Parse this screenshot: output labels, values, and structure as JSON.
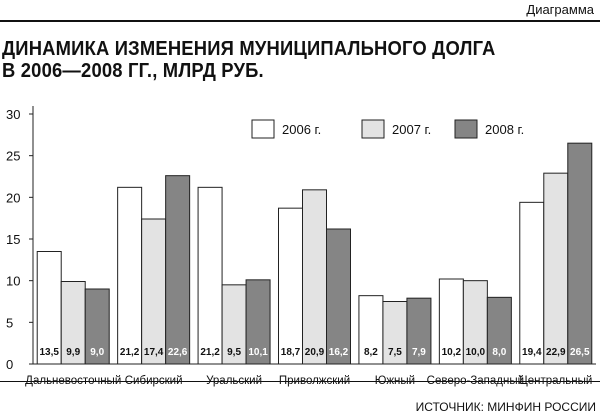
{
  "header": {
    "section_label": "Диаграмма"
  },
  "title_lines": [
    "ДИНАМИКА ИЗМЕНЕНИЯ МУНИЦИПАЛЬНОГО ДОЛГА",
    "В 2006—2008 ГГ., МЛРД РУБ."
  ],
  "source": "ИСТОЧНИК: МИНФИН РОССИИ",
  "colors": {
    "s2006": "#ffffff",
    "s2007": "#e3e3e3",
    "s2008": "#858585",
    "stroke": "#222222"
  },
  "chart_data": {
    "type": "bar",
    "title": "ДИНАМИКА ИЗМЕНЕНИЯ МУНИЦИПАЛЬНОГО ДОЛГА В 2006—2008 ГГ., МЛРД РУБ.",
    "categories": [
      "Дальневосточный",
      "Сибирский",
      "Уральский",
      "Приволжский",
      "Южный",
      "Северо-Западный",
      "Центральный"
    ],
    "series": [
      {
        "name": "2006 г.",
        "values": [
          13.5,
          21.2,
          21.2,
          18.7,
          8.2,
          10.2,
          19.4
        ],
        "labels": [
          "13,5",
          "21,2",
          "21,2",
          "18,7",
          "8,2",
          "10,2",
          "19,4"
        ]
      },
      {
        "name": "2007 г.",
        "values": [
          9.9,
          17.4,
          9.5,
          20.9,
          7.5,
          10.0,
          22.9
        ],
        "labels": [
          "9,9",
          "17,4",
          "9,5",
          "20,9",
          "7,5",
          "10,0",
          "22,9"
        ]
      },
      {
        "name": "2008 г.",
        "values": [
          9.0,
          22.6,
          10.1,
          16.2,
          7.9,
          8.0,
          26.5
        ],
        "labels": [
          "9,0",
          "22,6",
          "10,1",
          "16,2",
          "7,9",
          "8,0",
          "26,5"
        ]
      }
    ],
    "ylim": [
      0,
      30
    ],
    "yticks": [
      0,
      5,
      10,
      15,
      20,
      25,
      30
    ],
    "grid": false,
    "legend_position": "top-right"
  }
}
